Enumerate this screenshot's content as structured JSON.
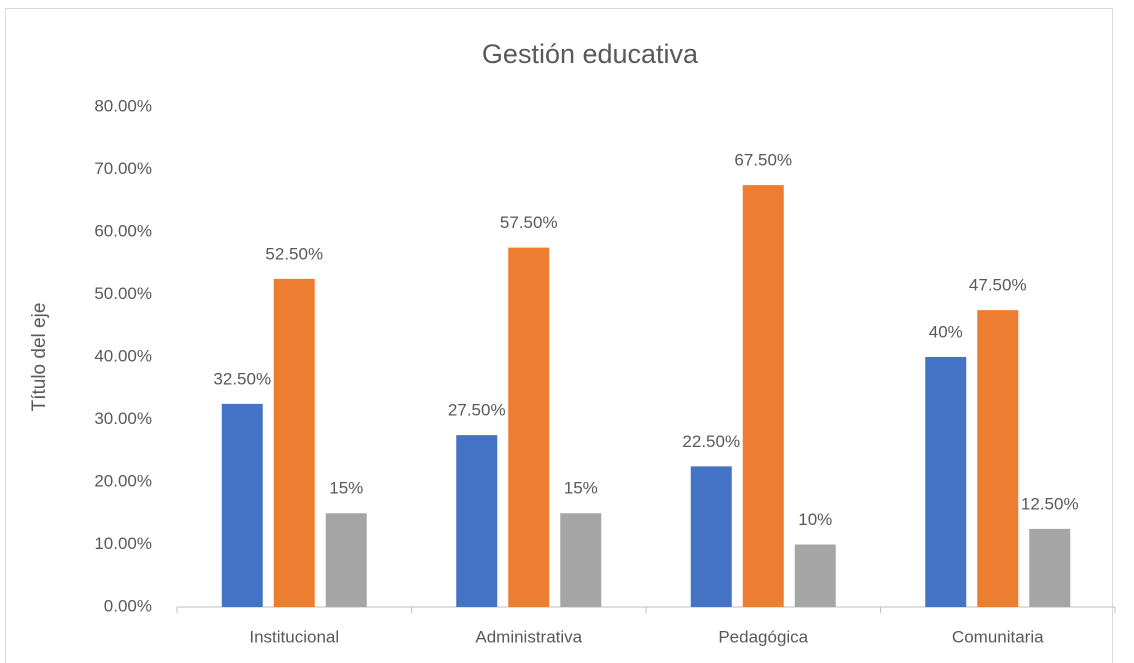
{
  "chart_data": {
    "type": "bar",
    "title": "Gestión educativa",
    "y_axis_label": "Título del eje",
    "categories": [
      "Institucional",
      "Administrativa",
      "Pedagógica",
      "Comunitaria"
    ],
    "series": [
      {
        "color": "#4472c4",
        "values": [
          32.5,
          27.5,
          22.5,
          40
        ],
        "value_labels": [
          "32.50%",
          "27.50%",
          "22.50%",
          "40%"
        ]
      },
      {
        "color": "#ed7d31",
        "values": [
          52.5,
          57.5,
          67.5,
          47.5
        ],
        "value_labels": [
          "52.50%",
          "57.50%",
          "67.50%",
          "47.50%"
        ]
      },
      {
        "color": "#a5a5a5",
        "values": [
          15,
          15,
          10,
          12.5
        ],
        "value_labels": [
          "15%",
          "15%",
          "10%",
          "12.50%"
        ]
      }
    ],
    "ylim": [
      0,
      80
    ],
    "yticks": [
      {
        "value": 0,
        "label": "0.00%"
      },
      {
        "value": 10,
        "label": "10.00%"
      },
      {
        "value": 20,
        "label": "20.00%"
      },
      {
        "value": 30,
        "label": "30.00%"
      },
      {
        "value": 40,
        "label": "40.00%"
      },
      {
        "value": 50,
        "label": "50.00%"
      },
      {
        "value": 60,
        "label": "60.00%"
      },
      {
        "value": 70,
        "label": "70.00%"
      },
      {
        "value": 80,
        "label": "80.00%"
      }
    ],
    "grid": false,
    "legend": false
  }
}
